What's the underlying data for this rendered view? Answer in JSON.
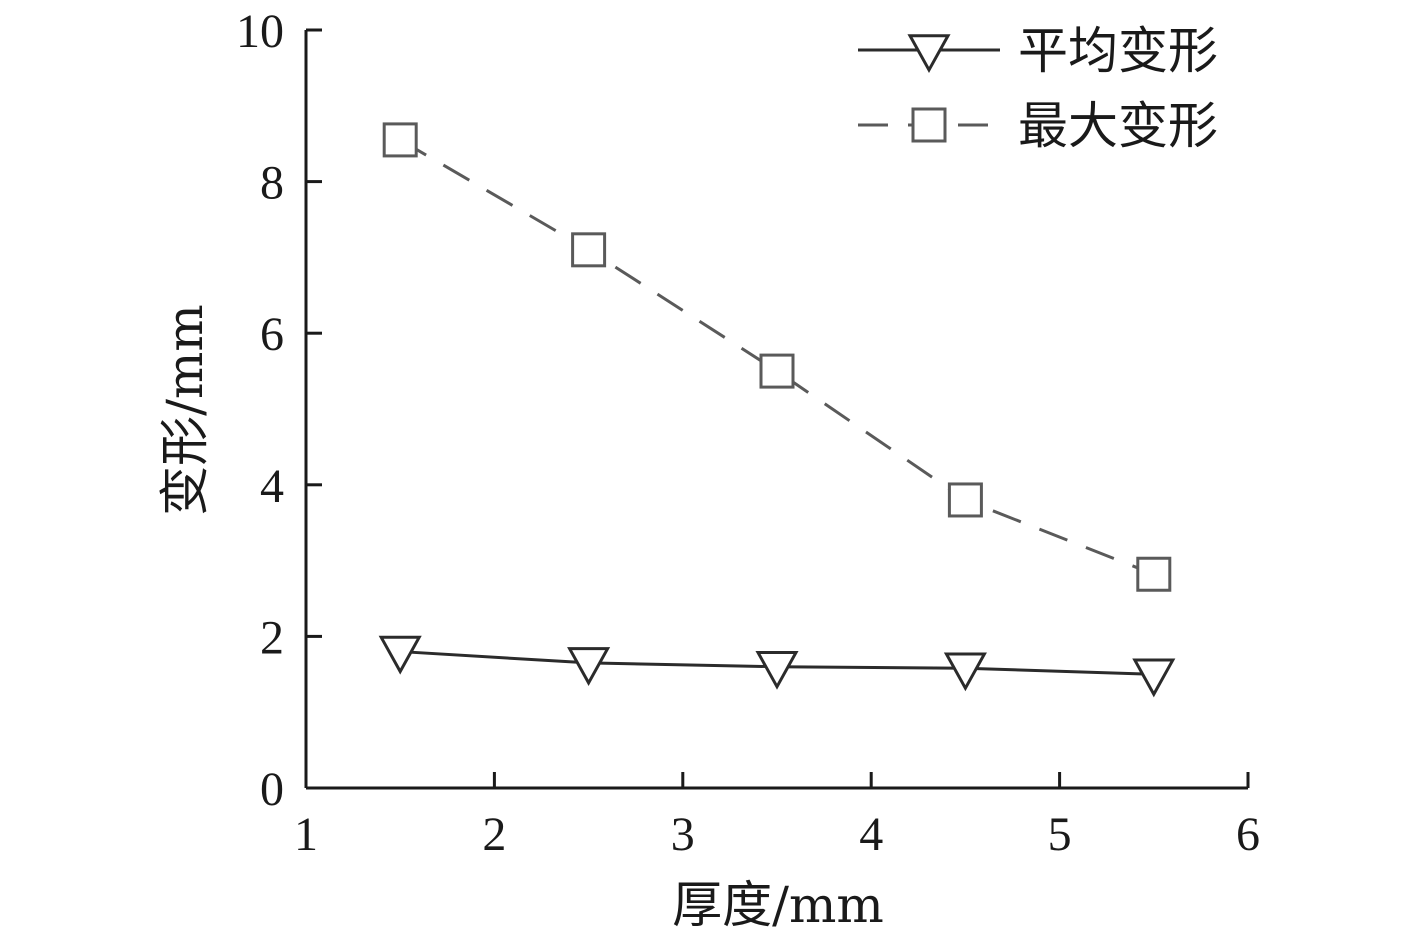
{
  "chart_data": {
    "type": "line",
    "title": "",
    "xlabel": "厚度/mm",
    "ylabel": "变形/mm",
    "xlim": [
      1,
      6
    ],
    "ylim": [
      0,
      10
    ],
    "x_ticks": [
      1,
      2,
      3,
      4,
      5,
      6
    ],
    "y_ticks": [
      0,
      2,
      4,
      6,
      8,
      10
    ],
    "x": [
      1.5,
      2.5,
      3.5,
      4.5,
      5.5
    ],
    "grid": false,
    "legend_position": "top-right",
    "series": [
      {
        "name": "平均变形",
        "values": [
          1.8,
          1.65,
          1.6,
          1.58,
          1.5
        ],
        "color": "#2b2b2b",
        "line_style": "solid",
        "marker": "triangle-down"
      },
      {
        "name": "最大变形",
        "values": [
          8.55,
          7.1,
          5.5,
          3.8,
          2.82
        ],
        "color": "#5a5a5a",
        "line_style": "dashed",
        "marker": "square"
      }
    ]
  }
}
